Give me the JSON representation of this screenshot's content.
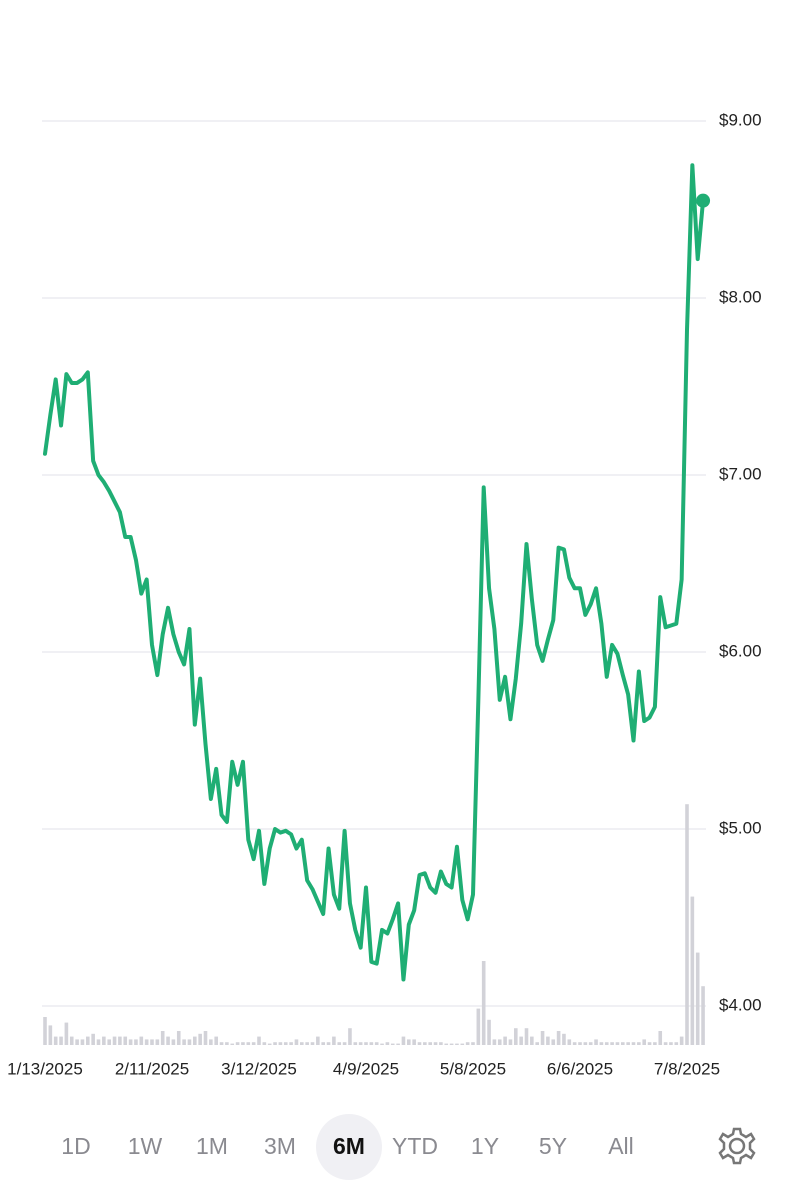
{
  "chart_data": {
    "type": "line",
    "categories": [
      "1/13/2025",
      null,
      null,
      null,
      null,
      null,
      null,
      null,
      null,
      null,
      null,
      null,
      null,
      null,
      null,
      null,
      null,
      null,
      null,
      null,
      "2/11/2025",
      null,
      null,
      null,
      null,
      null,
      null,
      null,
      null,
      null,
      null,
      null,
      null,
      null,
      null,
      null,
      null,
      null,
      null,
      null,
      "3/12/2025",
      null,
      null,
      null,
      null,
      null,
      null,
      null,
      null,
      null,
      null,
      null,
      null,
      null,
      null,
      null,
      null,
      null,
      null,
      null,
      "4/9/2025",
      null,
      null,
      null,
      null,
      null,
      null,
      null,
      null,
      null,
      null,
      null,
      null,
      null,
      null,
      null,
      null,
      null,
      null,
      null,
      "5/8/2025",
      null,
      null,
      null,
      null,
      null,
      null,
      null,
      null,
      null,
      null,
      null,
      null,
      null,
      null,
      null,
      null,
      null,
      null,
      null,
      "6/6/2025",
      null,
      null,
      null,
      null,
      null,
      null,
      null,
      null,
      null,
      null,
      null,
      null,
      null,
      null,
      null,
      null,
      null,
      null,
      null,
      "7/8/2025",
      null,
      null,
      null
    ],
    "series": [
      {
        "type": "line",
        "color": "#1fae74",
        "values": [
          7.12,
          7.34,
          7.54,
          7.28,
          7.57,
          7.52,
          7.52,
          7.54,
          7.58,
          7.08,
          7.0,
          6.96,
          6.91,
          6.85,
          6.79,
          6.65,
          6.65,
          6.52,
          6.33,
          6.41,
          6.04,
          5.87,
          6.1,
          6.25,
          6.1,
          6.0,
          5.93,
          6.13,
          5.59,
          5.85,
          5.48,
          5.17,
          5.34,
          5.08,
          5.04,
          5.38,
          5.25,
          5.38,
          4.94,
          4.83,
          4.99,
          4.69,
          4.89,
          5.0,
          4.98,
          4.99,
          4.97,
          4.89,
          4.94,
          4.71,
          4.66,
          4.59,
          4.52,
          4.89,
          4.63,
          4.55,
          4.99,
          4.58,
          4.43,
          4.33,
          4.67,
          4.25,
          4.24,
          4.43,
          4.41,
          4.49,
          4.58,
          4.15,
          4.46,
          4.54,
          4.74,
          4.75,
          4.67,
          4.64,
          4.76,
          4.69,
          4.67,
          4.9,
          4.6,
          4.49,
          4.63,
          5.73,
          6.93,
          6.36,
          6.13,
          5.73,
          5.86,
          5.62,
          5.85,
          6.16,
          6.61,
          6.3,
          6.04,
          5.95,
          6.07,
          6.18,
          6.59,
          6.58,
          6.42,
          6.36,
          6.36,
          6.21,
          6.27,
          6.36,
          6.16,
          5.86,
          6.04,
          5.99,
          5.87,
          5.76,
          5.5,
          5.89,
          5.61,
          5.63,
          5.69,
          6.31,
          6.14,
          6.15,
          6.16,
          6.41,
          7.82,
          8.75,
          8.22,
          8.55
        ]
      },
      {
        "type": "bar",
        "axis": "y2",
        "color": "#d2d2d8",
        "values": [
          10,
          7,
          3,
          3,
          8,
          3,
          2,
          2,
          3,
          4,
          2,
          3,
          2,
          3,
          3,
          3,
          2,
          2,
          3,
          2,
          2,
          2,
          5,
          3,
          2,
          5,
          2,
          2,
          3,
          4,
          5,
          2,
          3,
          1,
          1,
          0.5,
          1,
          1,
          1,
          1,
          3,
          1,
          0.5,
          1,
          1,
          1,
          1,
          2,
          1,
          1,
          1,
          3,
          1,
          1,
          3,
          1,
          1,
          6,
          1,
          1,
          1,
          1,
          1,
          0.5,
          1,
          0.5,
          0.5,
          3,
          2,
          2,
          1,
          1,
          1,
          1,
          1,
          0.5,
          0.5,
          0.5,
          0.5,
          1,
          1,
          13,
          30,
          9,
          2,
          2,
          3,
          2,
          6,
          3,
          6,
          3,
          1,
          5,
          3,
          2,
          5,
          4,
          2,
          1,
          1,
          1,
          1,
          2,
          1,
          1,
          1,
          1,
          1,
          1,
          1,
          1,
          2,
          1,
          1,
          5,
          1,
          1,
          1,
          3,
          86,
          53,
          33,
          21
        ]
      }
    ],
    "ylim": [
      3.78,
      9.2
    ],
    "yticks": [
      {
        "value": 9,
        "label": "$9.00"
      },
      {
        "value": 8,
        "label": "$8.00"
      },
      {
        "value": 7,
        "label": "$7.00"
      },
      {
        "value": 6,
        "label": "$6.00"
      },
      {
        "value": 5,
        "label": "$5.00"
      },
      {
        "value": 4,
        "label": "$4.00"
      }
    ],
    "y2lim": [
      0,
      100
    ],
    "grid": true
  },
  "range_selector": {
    "options": [
      "1D",
      "1W",
      "1M",
      "3M",
      "6M",
      "YTD",
      "1Y",
      "5Y",
      "All"
    ],
    "selected": 4
  }
}
